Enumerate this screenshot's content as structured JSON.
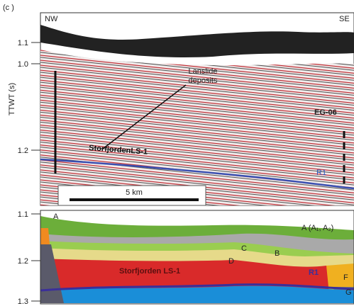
{
  "panel_label": "(c )",
  "top_panel": {
    "left_label": "NW",
    "right_label": "SE",
    "axis_label": "TTWT (s)",
    "ticks": [
      "1.1",
      "1.0",
      "1.2"
    ],
    "annotation": "Lanslide\ndeposits",
    "profile": "EG-06",
    "unit_label": "StorfjordenLS-1",
    "reflector": "R1",
    "scale": "5 km"
  },
  "bottom_panel": {
    "ticks": [
      "1.1",
      "1.2",
      "1.3"
    ],
    "labels": {
      "a": "A",
      "a_sub": "A (A₁, A₂)",
      "b": "B",
      "c": "C",
      "d": "D",
      "unit": "Storfjorden LS-1",
      "r1": "R1",
      "f": "F",
      "g": "G"
    }
  }
}
